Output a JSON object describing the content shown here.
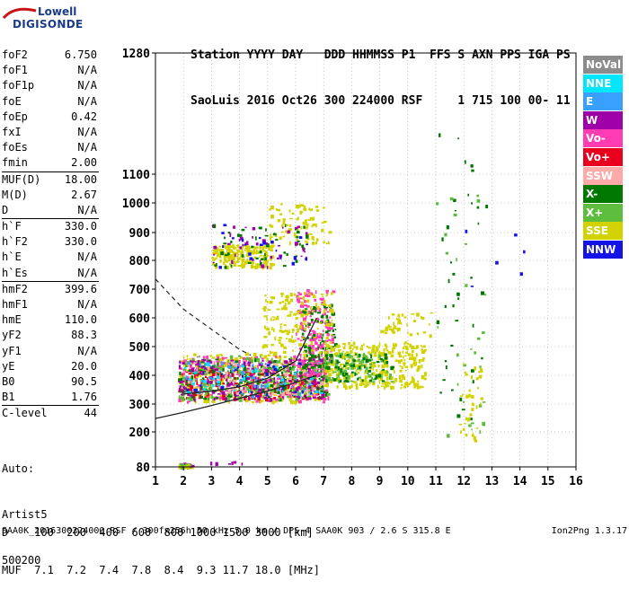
{
  "logo": {
    "line1": "Lowell",
    "line2": "DIGISONDE"
  },
  "header": {
    "line1": "Station YYYY DAY   DDD HHMMSS P1  FFS S AXN PPS IGA PS",
    "line2": "SaoLuis 2016 Oct26 300 224000 RSF     1 715 100 00- 11"
  },
  "params": [
    [
      {
        "k": "foF2",
        "v": "6.750"
      },
      {
        "k": "foF1",
        "v": "N/A"
      },
      {
        "k": "foF1p",
        "v": "N/A"
      },
      {
        "k": "foE",
        "v": "N/A"
      },
      {
        "k": "foEp",
        "v": "0.42"
      },
      {
        "k": "fxI",
        "v": "N/A"
      },
      {
        "k": "foEs",
        "v": "N/A"
      },
      {
        "k": "fmin",
        "v": "2.00"
      }
    ],
    [
      {
        "k": "MUF(D)",
        "v": "18.00"
      },
      {
        "k": "M(D)",
        "v": "2.67"
      },
      {
        "k": "D",
        "v": "N/A"
      }
    ],
    [
      {
        "k": "h`F",
        "v": "330.0"
      },
      {
        "k": "h`F2",
        "v": "330.0"
      },
      {
        "k": "h`E",
        "v": "N/A"
      },
      {
        "k": "h`Es",
        "v": "N/A"
      }
    ],
    [
      {
        "k": "hmF2",
        "v": "399.6"
      },
      {
        "k": "hmF1",
        "v": "N/A"
      },
      {
        "k": "hmE",
        "v": "110.0"
      },
      {
        "k": "yF2",
        "v": "88.3"
      },
      {
        "k": "yF1",
        "v": "N/A"
      },
      {
        "k": "yE",
        "v": "20.0"
      },
      {
        "k": "B0",
        "v": "90.5"
      },
      {
        "k": "B1",
        "v": "1.76"
      }
    ],
    [
      {
        "k": "C-level",
        "v": "44"
      }
    ]
  ],
  "auto": {
    "line1": "Auto:",
    "line2": "Artist5",
    "line3": "500200"
  },
  "legend": [
    {
      "label": "NoVal",
      "color": "#8c8c8c"
    },
    {
      "label": "NNE",
      "color": "#00e6ff"
    },
    {
      "label": "E",
      "color": "#3aa0ff"
    },
    {
      "label": "W",
      "color": "#a000a8"
    },
    {
      "label": "Vo-",
      "color": "#ff3cb4"
    },
    {
      "label": "Vo+",
      "color": "#e8001e"
    },
    {
      "label": "SSW",
      "color": "#ffaaaa"
    },
    {
      "label": "X-",
      "color": "#007800"
    },
    {
      "label": "X+",
      "color": "#5cbe3c"
    },
    {
      "label": "SSE",
      "color": "#d2d200"
    },
    {
      "label": "NNW",
      "color": "#1414e6"
    }
  ],
  "bottom": {
    "d_line": "D    100  200  400  600  800 1000 1500 3000 [km]",
    "muf_line": "MUF  7.1  7.2  7.4  7.8  8.4  9.3 11.7 18.0 [MHz]"
  },
  "footer": {
    "left": "SAA0K_2016300224000.RSF / 300fx256h 50 kHz 5.0 km / DPS-4 SAA0K 903 / 2.6 S 315.8 E",
    "right": "Ion2Png 1.3.17"
  },
  "chart_data": {
    "type": "scatter",
    "x_ticks": [
      1,
      2,
      3,
      4,
      5,
      6,
      7,
      8,
      9,
      10,
      11,
      12,
      13,
      14,
      15,
      16
    ],
    "y_ticks": [
      80,
      200,
      300,
      400,
      500,
      600,
      700,
      800,
      900,
      1000,
      1100,
      1280
    ],
    "xlim": [
      1,
      16
    ],
    "ylim": [
      80,
      1280
    ],
    "y_scale": "piecewise",
    "grid": true,
    "legend_placement": "right",
    "ordinary_trace_frequency_mhz": [
      2.0,
      3.0,
      4.0,
      5.0,
      6.0,
      6.75
    ],
    "ordinary_trace_height_km": [
      335,
      345,
      360,
      390,
      450,
      600
    ],
    "model_profile_frequency_mhz": [
      1.0,
      2.0,
      3.0,
      4.0,
      5.0,
      6.0,
      6.75
    ],
    "model_profile_height_km": [
      248,
      270,
      295,
      320,
      345,
      375,
      400
    ],
    "muf_curve_frequency_mhz": [
      1.0,
      2.0,
      3.0,
      4.0,
      4.4
    ],
    "muf_curve_height_km": [
      735,
      630,
      560,
      490,
      470
    ],
    "echo_regions": [
      {
        "source": "W",
        "x": [
          1.8,
          2.3
        ],
        "y": [
          80,
          95
        ],
        "density": 25
      },
      {
        "source": "Vo-",
        "x": [
          1.8,
          2.3
        ],
        "y": [
          80,
          95
        ],
        "density": 12
      },
      {
        "source": "X+",
        "x": [
          1.8,
          2.3
        ],
        "y": [
          80,
          95
        ],
        "density": 10
      },
      {
        "source": "SSE",
        "x": [
          1.8,
          2.3
        ],
        "y": [
          80,
          95
        ],
        "density": 8
      },
      {
        "source": "W",
        "x": [
          2.7,
          4.2
        ],
        "y": [
          80,
          100
        ],
        "density": 6
      },
      {
        "source": "SSE",
        "x": [
          1.8,
          7.2
        ],
        "y": [
          310,
          480
        ],
        "density": 420
      },
      {
        "source": "Vo-",
        "x": [
          1.8,
          7.2
        ],
        "y": [
          310,
          470
        ],
        "density": 280
      },
      {
        "source": "Vo+",
        "x": [
          1.8,
          6.8
        ],
        "y": [
          320,
          420
        ],
        "density": 180
      },
      {
        "source": "X-",
        "x": [
          1.8,
          7.2
        ],
        "y": [
          320,
          460
        ],
        "density": 220
      },
      {
        "source": "X+",
        "x": [
          1.8,
          7.2
        ],
        "y": [
          320,
          470
        ],
        "density": 200
      },
      {
        "source": "W",
        "x": [
          1.8,
          7.0
        ],
        "y": [
          320,
          460
        ],
        "density": 160
      },
      {
        "source": "E",
        "x": [
          2.0,
          7.0
        ],
        "y": [
          330,
          450
        ],
        "density": 60
      },
      {
        "source": "SSW",
        "x": [
          2.0,
          7.0
        ],
        "y": [
          330,
          450
        ],
        "density": 80
      },
      {
        "source": "NNE",
        "x": [
          2.0,
          7.0
        ],
        "y": [
          330,
          450
        ],
        "density": 40
      },
      {
        "source": "NNW",
        "x": [
          2.0,
          7.0
        ],
        "y": [
          330,
          450
        ],
        "density": 30
      },
      {
        "source": "Vo-",
        "x": [
          6.0,
          7.3
        ],
        "y": [
          400,
          700
        ],
        "density": 180
      },
      {
        "source": "X-",
        "x": [
          6.2,
          7.4
        ],
        "y": [
          430,
          650
        ],
        "density": 80
      },
      {
        "source": "SSE",
        "x": [
          4.8,
          7.3
        ],
        "y": [
          480,
          690
        ],
        "density": 160
      },
      {
        "source": "SSE",
        "x": [
          7.0,
          10.6
        ],
        "y": [
          360,
          520
        ],
        "density": 360
      },
      {
        "source": "X+",
        "x": [
          7.0,
          9.4
        ],
        "y": [
          380,
          480
        ],
        "density": 90
      },
      {
        "source": "X-",
        "x": [
          7.0,
          9.4
        ],
        "y": [
          380,
          480
        ],
        "density": 60
      },
      {
        "source": "SSE",
        "x": [
          9.0,
          10.8
        ],
        "y": [
          540,
          620
        ],
        "density": 40
      },
      {
        "source": "SSE",
        "x": [
          3.0,
          5.2
        ],
        "y": [
          780,
          860
        ],
        "density": 200
      },
      {
        "source": "SSE",
        "x": [
          5.0,
          7.2
        ],
        "y": [
          860,
          1000
        ],
        "density": 90
      },
      {
        "source": "X-",
        "x": [
          3.0,
          6.4
        ],
        "y": [
          780,
          930
        ],
        "density": 50
      },
      {
        "source": "W",
        "x": [
          3.0,
          6.4
        ],
        "y": [
          780,
          930
        ],
        "density": 40
      },
      {
        "source": "NNW",
        "x": [
          3.0,
          6.4
        ],
        "y": [
          780,
          930
        ],
        "density": 20
      },
      {
        "source": "X-",
        "x": [
          11.0,
          12.8
        ],
        "y": [
          180,
          1200
        ],
        "density": 40
      },
      {
        "source": "X+",
        "x": [
          11.0,
          12.8
        ],
        "y": [
          180,
          1100
        ],
        "density": 30
      },
      {
        "source": "SSE",
        "x": [
          11.8,
          12.6
        ],
        "y": [
          170,
          450
        ],
        "density": 40
      },
      {
        "source": "NNW",
        "x": [
          12.0,
          14.5
        ],
        "y": [
          700,
          1050
        ],
        "density": 6
      }
    ]
  }
}
